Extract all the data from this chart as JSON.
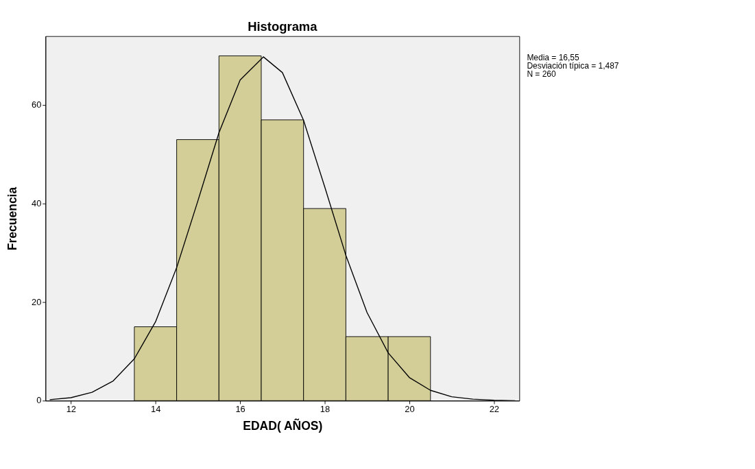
{
  "chart_data": {
    "type": "histogram",
    "title": "Histograma",
    "xlabel": "EDAD( AÑOS)",
    "ylabel": "Frecuencia",
    "bins": [
      13.5,
      14.5,
      15.5,
      16.5,
      17.5,
      18.5,
      19.5,
      20.5
    ],
    "values": [
      15,
      53,
      70,
      57,
      39,
      13,
      13
    ],
    "color": "#d3ce98",
    "series": [
      {
        "type": "line",
        "color": "#000000",
        "x": [
          11.5,
          12,
          12.5,
          13,
          13.5,
          14,
          14.5,
          15,
          15.5,
          16,
          16.55,
          17,
          17.5,
          18,
          18.5,
          19,
          19.5,
          20,
          20.5,
          21,
          21.5,
          22,
          22.5
        ],
        "values": [
          0.2,
          0.6,
          1.7,
          4.0,
          8.5,
          16.0,
          27.0,
          40.5,
          54.4,
          65.1,
          69.8,
          66.6,
          56.9,
          43.4,
          29.5,
          17.9,
          9.7,
          4.7,
          2.1,
          0.8,
          0.3,
          0.1,
          0.0
        ]
      }
    ],
    "xlim": [
      11.4,
      22.6
    ],
    "xticks": [
      12,
      14,
      16,
      18,
      20,
      22
    ],
    "ylim": [
      0,
      74
    ],
    "yticks": [
      0,
      20,
      40,
      60
    ],
    "grid": false,
    "annotations": [
      "Media = 16,55",
      "Desviación típica = 1,487",
      "N = 260"
    ]
  }
}
